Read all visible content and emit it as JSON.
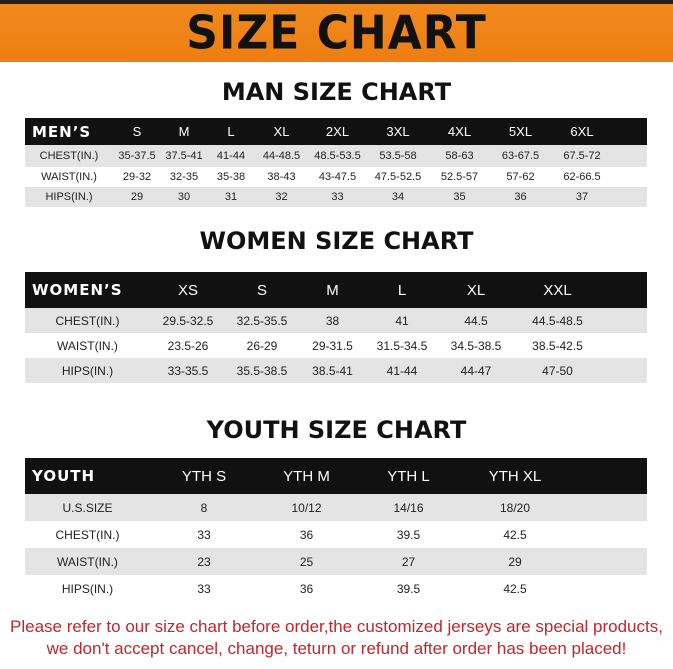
{
  "banner_title": "SIZE CHART",
  "colors": {
    "banner": "#ee7d12",
    "header": "#111111",
    "stripe": "#e4e4e4",
    "note": "#c0262b"
  },
  "men": {
    "title": "MAN SIZE CHART",
    "header": [
      "MEN’S",
      "S",
      "M",
      "L",
      "XL",
      "2XL",
      "3XL",
      "4XL",
      "5XL",
      "6XL"
    ],
    "rows": [
      [
        "CHEST(IN.)",
        "35-37.5",
        "37.5-41",
        "41-44",
        "44-48.5",
        "48.5-53.5",
        "53.5-58",
        "58-63",
        "63-67.5",
        "67.5-72"
      ],
      [
        "WAIST(IN.)",
        "29-32",
        "32-35",
        "35-38",
        "38-43",
        "43-47.5",
        "47.5-52.5",
        "52.5-57",
        "57-62",
        "62-66.5"
      ],
      [
        "HIPS(IN.)",
        "29",
        "30",
        "31",
        "32",
        "33",
        "34",
        "35",
        "36",
        "37"
      ]
    ]
  },
  "women": {
    "title": "WOMEN SIZE CHART",
    "header": [
      "WOMEN’S",
      "XS",
      "S",
      "M",
      "L",
      "XL",
      "XXL"
    ],
    "rows": [
      [
        "CHEST(IN.)",
        "29.5-32.5",
        "32.5-35.5",
        "38",
        "41",
        "44.5",
        "44.5-48.5"
      ],
      [
        "WAIST(IN.)",
        "23.5-26",
        "26-29",
        "29-31.5",
        "31.5-34.5",
        "34.5-38.5",
        "38.5-42.5"
      ],
      [
        "HIPS(IN.)",
        "33-35.5",
        "35.5-38.5",
        "38.5-41",
        "41-44",
        "44-47",
        "47-50"
      ]
    ]
  },
  "youth": {
    "title": "YOUTH SIZE CHART",
    "header": [
      "YOUTH",
      "YTH S",
      "YTH M",
      "YTH L",
      "YTH XL"
    ],
    "rows": [
      [
        "U.S.SIZE",
        "8",
        "10/12",
        "14/16",
        "18/20"
      ],
      [
        "CHEST(IN.)",
        "33",
        "36",
        "39.5",
        "42.5"
      ],
      [
        "WAIST(IN.)",
        "23",
        "25",
        "27",
        "29"
      ],
      [
        "HIPS(IN.)",
        "33",
        "36",
        "39.5",
        "42.5"
      ]
    ]
  },
  "note": [
    "Please refer to our size chart before order,the customized jerseys are special products,",
    "we don't accept cancel, change, teturn or refund after order has been placed!"
  ]
}
